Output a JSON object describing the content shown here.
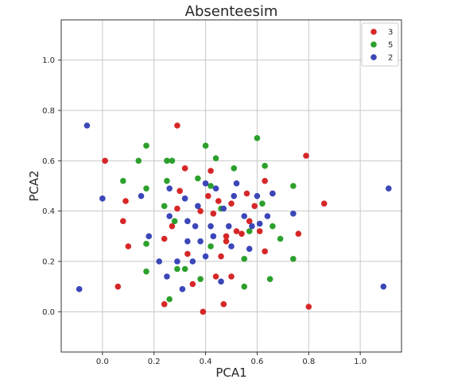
{
  "chart_data": {
    "type": "scatter",
    "title": "Absenteesim",
    "xlabel": "PCA1",
    "ylabel": "PCA2",
    "xlim": [
      -0.16,
      1.16
    ],
    "ylim": [
      -0.16,
      1.16
    ],
    "xticks": [
      0.0,
      0.2,
      0.4,
      0.6,
      0.8,
      1.0
    ],
    "yticks": [
      0.0,
      0.2,
      0.4,
      0.6,
      0.8,
      1.0
    ],
    "xtick_labels": [
      "0.0",
      "0.2",
      "0.4",
      "0.6",
      "0.8",
      "1.0"
    ],
    "ytick_labels": [
      "0.0",
      "0.2",
      "0.4",
      "0.6",
      "0.8",
      "1.0"
    ],
    "grid": true,
    "legend_position": "top-right",
    "series": [
      {
        "name": "3",
        "color": "#d62728",
        "points": [
          [
            0.01,
            0.6
          ],
          [
            0.06,
            0.1
          ],
          [
            0.08,
            0.36
          ],
          [
            0.09,
            0.44
          ],
          [
            0.1,
            0.26
          ],
          [
            0.24,
            0.03
          ],
          [
            0.24,
            0.29
          ],
          [
            0.27,
            0.34
          ],
          [
            0.29,
            0.74
          ],
          [
            0.29,
            0.41
          ],
          [
            0.3,
            0.48
          ],
          [
            0.32,
            0.57
          ],
          [
            0.33,
            0.23
          ],
          [
            0.35,
            0.11
          ],
          [
            0.38,
            0.4
          ],
          [
            0.39,
            0.0
          ],
          [
            0.41,
            0.46
          ],
          [
            0.42,
            0.56
          ],
          [
            0.43,
            0.39
          ],
          [
            0.44,
            0.14
          ],
          [
            0.45,
            0.44
          ],
          [
            0.46,
            0.22
          ],
          [
            0.47,
            0.03
          ],
          [
            0.48,
            0.3
          ],
          [
            0.48,
            0.28
          ],
          [
            0.5,
            0.43
          ],
          [
            0.5,
            0.14
          ],
          [
            0.52,
            0.32
          ],
          [
            0.54,
            0.31
          ],
          [
            0.56,
            0.47
          ],
          [
            0.57,
            0.36
          ],
          [
            0.59,
            0.42
          ],
          [
            0.61,
            0.32
          ],
          [
            0.63,
            0.52
          ],
          [
            0.63,
            0.24
          ],
          [
            0.66,
            0.47
          ],
          [
            0.76,
            0.31
          ],
          [
            0.79,
            0.62
          ],
          [
            0.8,
            0.02
          ],
          [
            0.86,
            0.43
          ]
        ]
      },
      {
        "name": "5",
        "color": "#2ca02c",
        "points": [
          [
            0.08,
            0.52
          ],
          [
            0.14,
            0.6
          ],
          [
            0.17,
            0.66
          ],
          [
            0.17,
            0.49
          ],
          [
            0.17,
            0.27
          ],
          [
            0.17,
            0.16
          ],
          [
            0.24,
            0.42
          ],
          [
            0.25,
            0.52
          ],
          [
            0.25,
            0.6
          ],
          [
            0.26,
            0.05
          ],
          [
            0.27,
            0.6
          ],
          [
            0.28,
            0.36
          ],
          [
            0.29,
            0.17
          ],
          [
            0.32,
            0.17
          ],
          [
            0.37,
            0.53
          ],
          [
            0.38,
            0.13
          ],
          [
            0.4,
            0.66
          ],
          [
            0.42,
            0.26
          ],
          [
            0.42,
            0.5
          ],
          [
            0.44,
            0.61
          ],
          [
            0.46,
            0.41
          ],
          [
            0.51,
            0.57
          ],
          [
            0.55,
            0.1
          ],
          [
            0.55,
            0.21
          ],
          [
            0.57,
            0.32
          ],
          [
            0.6,
            0.69
          ],
          [
            0.62,
            0.43
          ],
          [
            0.63,
            0.58
          ],
          [
            0.65,
            0.13
          ],
          [
            0.66,
            0.34
          ],
          [
            0.69,
            0.29
          ],
          [
            0.74,
            0.5
          ],
          [
            0.74,
            0.21
          ]
        ]
      },
      {
        "name": "2",
        "color": "#3b46b8",
        "points": [
          [
            -0.09,
            0.09
          ],
          [
            -0.06,
            0.74
          ],
          [
            0.0,
            0.45
          ],
          [
            0.15,
            0.46
          ],
          [
            0.18,
            0.3
          ],
          [
            0.22,
            0.2
          ],
          [
            0.25,
            0.14
          ],
          [
            0.26,
            0.38
          ],
          [
            0.26,
            0.49
          ],
          [
            0.29,
            0.2
          ],
          [
            0.31,
            0.09
          ],
          [
            0.32,
            0.45
          ],
          [
            0.33,
            0.28
          ],
          [
            0.33,
            0.36
          ],
          [
            0.35,
            0.2
          ],
          [
            0.36,
            0.34
          ],
          [
            0.37,
            0.42
          ],
          [
            0.38,
            0.28
          ],
          [
            0.4,
            0.51
          ],
          [
            0.4,
            0.22
          ],
          [
            0.42,
            0.34
          ],
          [
            0.43,
            0.3
          ],
          [
            0.44,
            0.49
          ],
          [
            0.46,
            0.12
          ],
          [
            0.47,
            0.41
          ],
          [
            0.49,
            0.34
          ],
          [
            0.5,
            0.26
          ],
          [
            0.51,
            0.46
          ],
          [
            0.52,
            0.51
          ],
          [
            0.55,
            0.38
          ],
          [
            0.57,
            0.25
          ],
          [
            0.58,
            0.34
          ],
          [
            0.6,
            0.46
          ],
          [
            0.61,
            0.35
          ],
          [
            0.64,
            0.38
          ],
          [
            0.66,
            0.47
          ],
          [
            0.74,
            0.39
          ],
          [
            1.09,
            0.1
          ],
          [
            1.11,
            0.49
          ]
        ]
      }
    ]
  }
}
